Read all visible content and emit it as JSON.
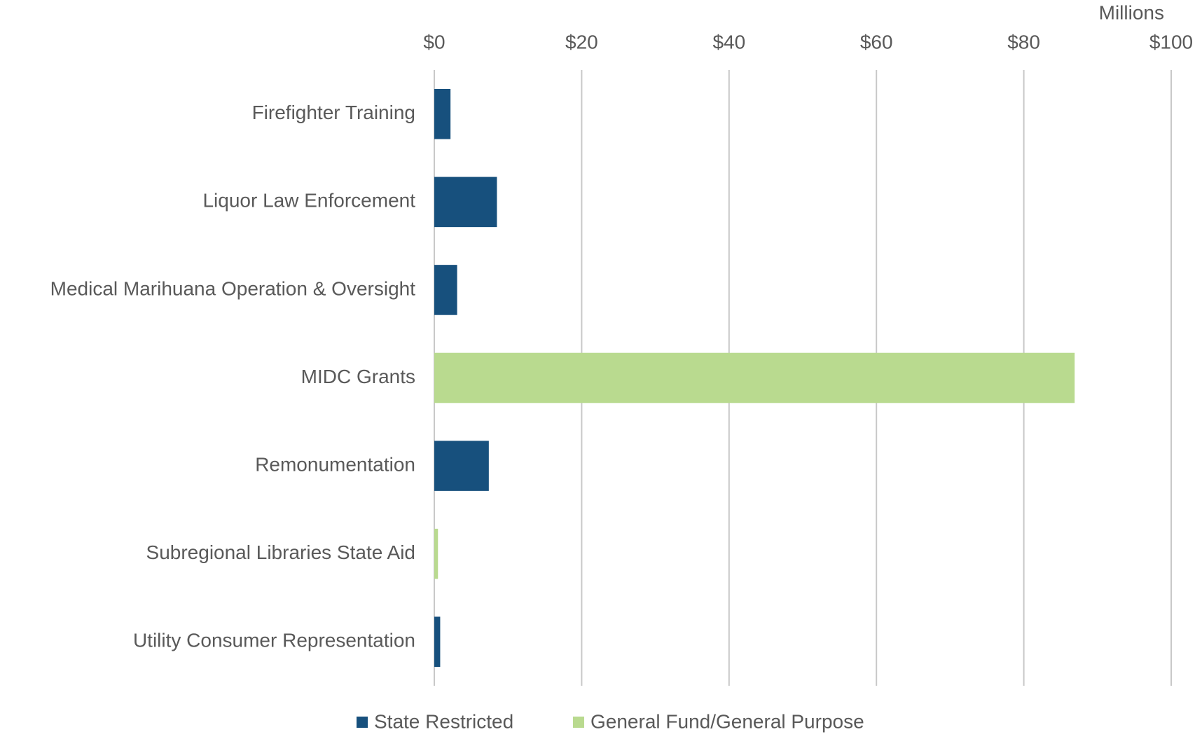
{
  "chart_data": {
    "type": "barh",
    "x_axis_label": "Millions",
    "categories": [
      "Firefighter Training",
      "Liquor Law Enforcement",
      "Medical Marihuana Operation & Oversight",
      "MIDC Grants",
      "Remonumentation",
      "Subregional Libraries State Aid",
      "Utility Consumer Representation"
    ],
    "series": [
      {
        "name": "State Restricted",
        "color": "#17507d",
        "values": [
          2.2,
          8.5,
          3.1,
          null,
          7.4,
          null,
          0.8
        ]
      },
      {
        "name": "General Fund/General Purpose",
        "color": "#b9da8f",
        "values": [
          null,
          null,
          null,
          86.9,
          null,
          0.5,
          null
        ]
      }
    ],
    "xlim": [
      0,
      100
    ],
    "xticks": [
      {
        "value": 0,
        "label": "$0"
      },
      {
        "value": 20,
        "label": "$20"
      },
      {
        "value": 40,
        "label": "$40"
      },
      {
        "value": 60,
        "label": "$60"
      },
      {
        "value": 80,
        "label": "$80"
      },
      {
        "value": 100,
        "label": "$100"
      }
    ],
    "grid": true,
    "legend": "bottom"
  }
}
